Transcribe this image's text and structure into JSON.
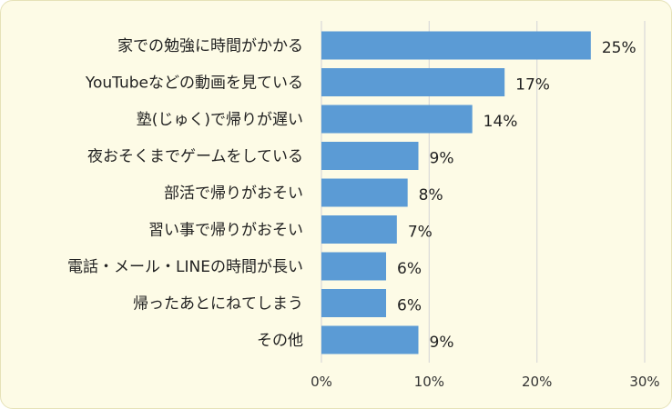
{
  "chart_data": {
    "type": "bar",
    "orientation": "horizontal",
    "categories": [
      "家での勉強に時間がかかる",
      "YouTubeなどの動画を見ている",
      "塾(じゅく)で帰りが遅い",
      "夜おそくまでゲームをしている",
      "部活で帰りがおそい",
      "習い事で帰りがおそい",
      "電話・メール・LINEの時間が長い",
      "帰ったあとにねてしまう",
      "その他"
    ],
    "values": [
      25,
      17,
      14,
      9,
      8,
      7,
      6,
      6,
      9
    ],
    "value_labels": [
      "25%",
      "17%",
      "14%",
      "9%",
      "8%",
      "7%",
      "6%",
      "6%",
      "9%"
    ],
    "xlim": [
      0,
      30
    ],
    "xticks": [
      "0%",
      "10%",
      "20%",
      "30%"
    ],
    "grid": true,
    "bar_color": "#5b9bd5",
    "grid_color": "#d9d9d9",
    "background_color": "#fdfbe6"
  }
}
